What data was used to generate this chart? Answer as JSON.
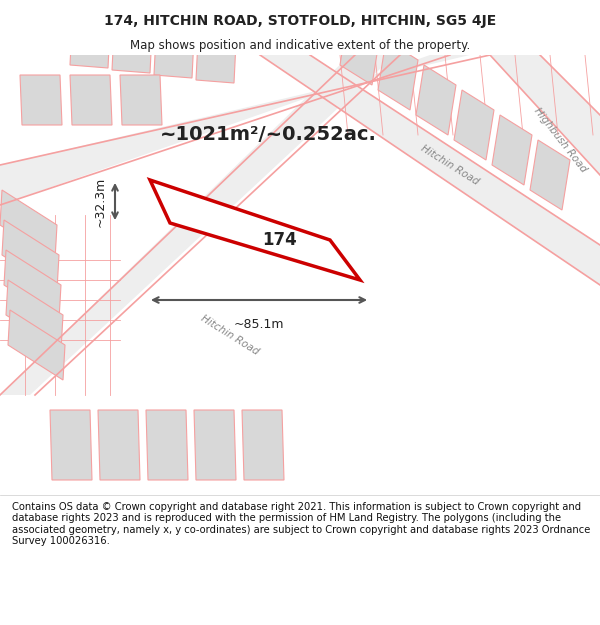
{
  "title_line1": "174, HITCHIN ROAD, STOTFOLD, HITCHIN, SG5 4JE",
  "title_line2": "Map shows position and indicative extent of the property.",
  "area_text": "~1021m²/~0.252ac.",
  "label_174": "174",
  "label_width": "~85.1m",
  "label_height": "~32.3m",
  "road_label_1": "Hitchin Road",
  "road_label_2": "Hitchin Road",
  "road_label_3": "Highbush Road",
  "footer_text": "Contains OS data © Crown copyright and database right 2021. This information is subject to Crown copyright and database rights 2023 and is reproduced with the permission of HM Land Registry. The polygons (including the associated geometry, namely x, y co-ordinates) are subject to Crown copyright and database rights 2023 Ordnance Survey 100026316.",
  "bg_color": "#f5f5f5",
  "map_bg_color": "#ffffff",
  "road_color": "#f5a0a0",
  "building_fill": "#d8d8d8",
  "building_edge": "#f5a0a0",
  "highlight_color": "#cc0000",
  "highlight_fill": "#ffffff",
  "dim_color": "#555555",
  "text_color": "#222222"
}
